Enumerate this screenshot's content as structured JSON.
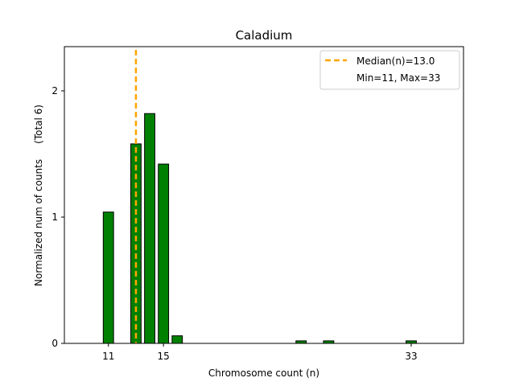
{
  "chart_data": {
    "type": "bar",
    "title": "Caladium",
    "xlabel": "Chromosome count (n)",
    "ylabel": "Normalized num of counts     (Total 6)",
    "xlim": [
      7.8,
      36.8
    ],
    "ylim": [
      0,
      2.35
    ],
    "xticks": [
      11,
      15,
      33
    ],
    "yticks": [
      0,
      1,
      2
    ],
    "bar_width": 0.75,
    "bar_color": "#008000",
    "bar_edge_color": "#000000",
    "x": [
      11,
      13,
      14,
      15,
      16,
      25,
      27,
      33
    ],
    "values": [
      1.04,
      1.58,
      1.82,
      1.42,
      0.06,
      0.02,
      0.02,
      0.02
    ],
    "median": 13.0,
    "median_color": "#FFA500",
    "legend": {
      "placement": "top-right",
      "entries": [
        "Median(n)=13.0",
        "Min=11, Max=33"
      ]
    }
  }
}
